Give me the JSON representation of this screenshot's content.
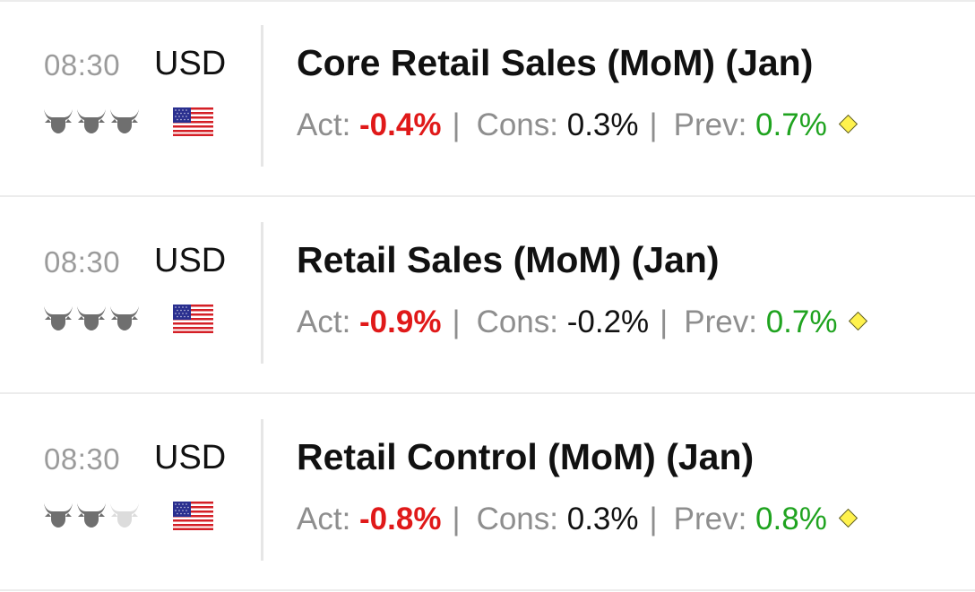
{
  "events": [
    {
      "time": "08:30",
      "currency": "USD",
      "importance": 3,
      "title": "Core Retail Sales (MoM) (Jan)",
      "act_label": "Act:",
      "actual": "-0.4%",
      "cons_label": "Cons:",
      "consensus": "0.3%",
      "prev_label": "Prev:",
      "previous": "0.7%",
      "separator": "|"
    },
    {
      "time": "08:30",
      "currency": "USD",
      "importance": 3,
      "title": "Retail Sales (MoM) (Jan)",
      "act_label": "Act:",
      "actual": "-0.9%",
      "cons_label": "Cons:",
      "consensus": "-0.2%",
      "prev_label": "Prev:",
      "previous": "0.7%",
      "separator": "|"
    },
    {
      "time": "08:30",
      "currency": "USD",
      "importance": 2,
      "title": "Retail Control (MoM) (Jan)",
      "act_label": "Act:",
      "actual": "-0.8%",
      "cons_label": "Cons:",
      "consensus": "0.3%",
      "prev_label": "Prev:",
      "previous": "0.8%",
      "separator": "|"
    }
  ],
  "icons": {
    "importance": "bull-icon",
    "flag": "us-flag-icon",
    "revision": "diamond-icon"
  },
  "colors": {
    "actual": "#e01919",
    "previous": "#1fa31f",
    "consensus": "#111111",
    "label": "#8e8e8e",
    "bull_active": "#6f6f6f",
    "bull_inactive": "#dcdcdc",
    "diamond": "#fff24d"
  }
}
